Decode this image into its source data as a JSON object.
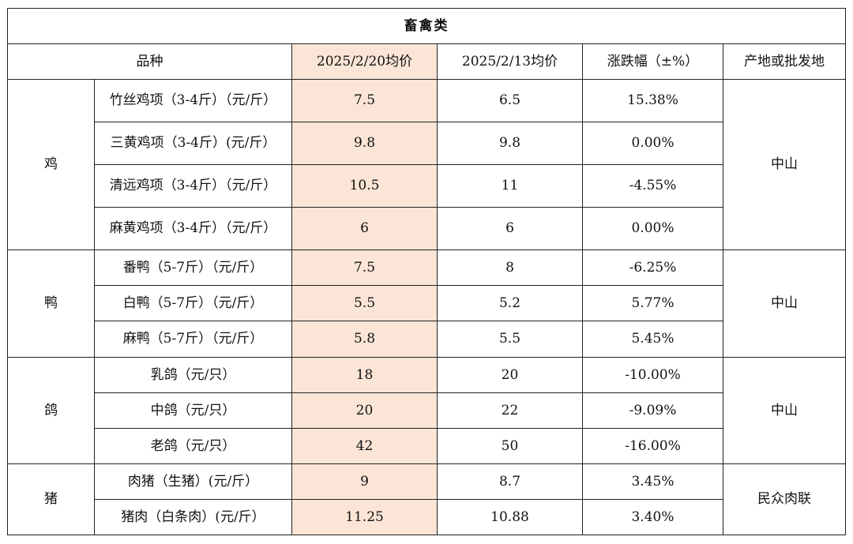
{
  "title": "畜禽类",
  "headers": {
    "variety": "品种",
    "price_current": "2025/2/20均价",
    "price_previous": "2025/2/13均价",
    "change": "涨跌幅（±%）",
    "origin": "产地或批发地"
  },
  "groups": [
    {
      "category": "鸡",
      "origin": "中山",
      "items": [
        {
          "name": "竹丝鸡项（3-4斤）（元/斤）",
          "current": "7.5",
          "previous": "6.5",
          "change": "15.38%"
        },
        {
          "name": "三黄鸡项（3-4斤）(元/斤）",
          "current": "9.8",
          "previous": "9.8",
          "change": "0.00%"
        },
        {
          "name": "清远鸡项（3-4斤）（元/斤）",
          "current": "10.5",
          "previous": "11",
          "change": "-4.55%"
        },
        {
          "name": "麻黄鸡项（3-4斤）（元/斤）",
          "current": "6",
          "previous": "6",
          "change": "0.00%"
        }
      ]
    },
    {
      "category": "鸭",
      "origin": "中山",
      "items": [
        {
          "name": "番鸭（5-7斤）（元/斤）",
          "current": "7.5",
          "previous": "8",
          "change": "-6.25%"
        },
        {
          "name": "白鸭（5-7斤）（元/斤）",
          "current": "5.5",
          "previous": "5.2",
          "change": "5.77%"
        },
        {
          "name": "麻鸭（5-7斤）（元/斤）",
          "current": "5.8",
          "previous": "5.5",
          "change": "5.45%"
        }
      ]
    },
    {
      "category": "鸽",
      "origin": "中山",
      "items": [
        {
          "name": "乳鸽（元/只）",
          "current": "18",
          "previous": "20",
          "change": "-10.00%"
        },
        {
          "name": "中鸽（元/只）",
          "current": "20",
          "previous": "22",
          "change": "-9.09%"
        },
        {
          "name": "老鸽（元/只）",
          "current": "42",
          "previous": "50",
          "change": "-16.00%"
        }
      ]
    },
    {
      "category": "猪",
      "origin": "民众肉联",
      "items": [
        {
          "name": "肉猪（生猪）(元/斤）",
          "current": "9",
          "previous": "8.7",
          "change": "3.45%"
        },
        {
          "name": "猪肉（白条肉）(元/斤）",
          "current": "11.25",
          "previous": "10.88",
          "change": "3.40%"
        }
      ]
    }
  ],
  "colors": {
    "highlight_column": "#fbe5d6",
    "border": "#222222"
  }
}
